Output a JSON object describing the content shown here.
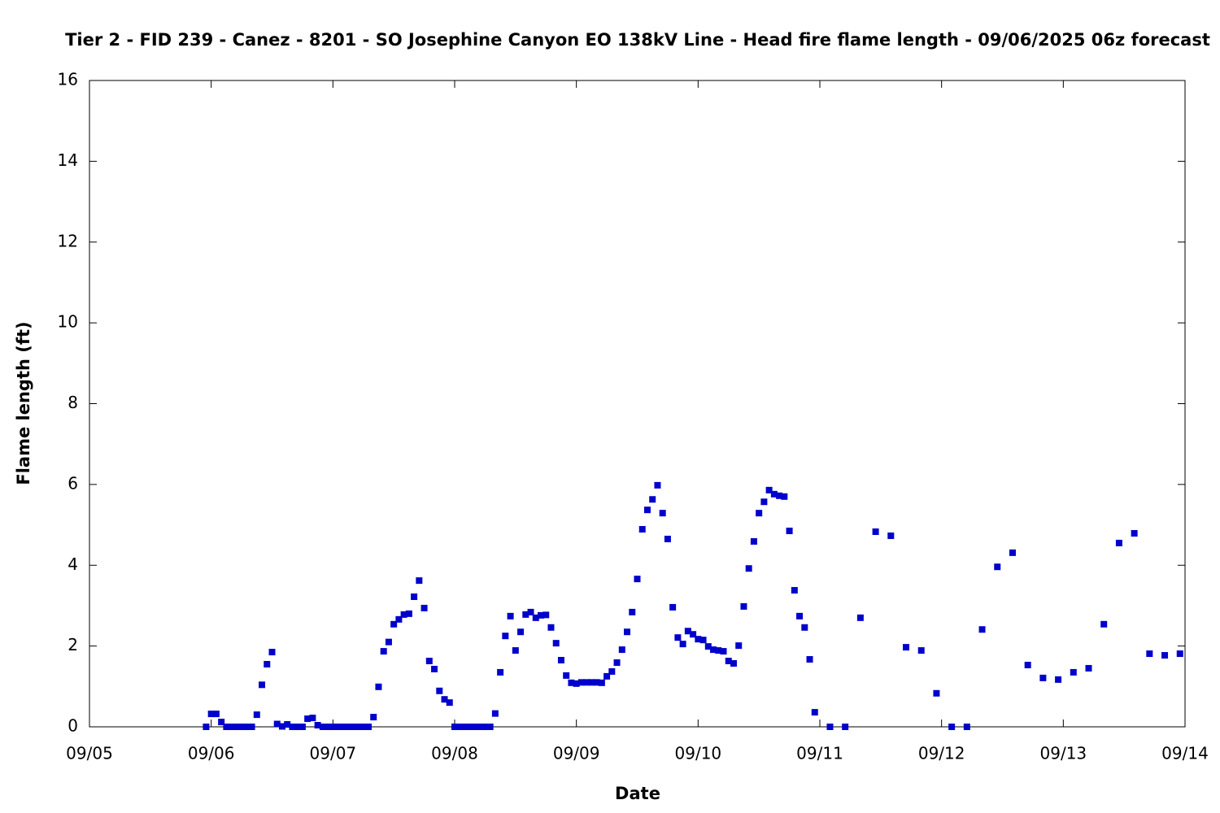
{
  "chart_data": {
    "type": "scatter",
    "title": "Tier 2 - FID 239 - Canez - 8201 - SO Josephine Canyon EO 138kV Line - Head fire flame length - 09/06/2025 06z forecast",
    "xlabel": "Date",
    "ylabel": "Flame length (ft)",
    "xlim": [
      0,
      216
    ],
    "ylim": [
      0,
      16
    ],
    "xticks": [
      {
        "value": 0,
        "label": "09/05"
      },
      {
        "value": 24,
        "label": "09/06"
      },
      {
        "value": 48,
        "label": "09/07"
      },
      {
        "value": 72,
        "label": "09/08"
      },
      {
        "value": 96,
        "label": "09/09"
      },
      {
        "value": 120,
        "label": "09/10"
      },
      {
        "value": 144,
        "label": "09/11"
      },
      {
        "value": 168,
        "label": "09/12"
      },
      {
        "value": 192,
        "label": "09/13"
      },
      {
        "value": 216,
        "label": "09/14"
      }
    ],
    "yticks": [
      0,
      2,
      4,
      6,
      8,
      10,
      12,
      14,
      16
    ],
    "grid": false,
    "series": [
      {
        "color": "#0000cc",
        "x": [
          23,
          24,
          25,
          26,
          27,
          28,
          29,
          30,
          31,
          32,
          33,
          34,
          35,
          36,
          37,
          38,
          39,
          40,
          41,
          42,
          43,
          44,
          45,
          46,
          47,
          48,
          49,
          50,
          51,
          52,
          53,
          54,
          55,
          56,
          57,
          58,
          59,
          60,
          61,
          62,
          63,
          64,
          65,
          66,
          67,
          68,
          69,
          70,
          71,
          72,
          73,
          74,
          75,
          76,
          77,
          78,
          79,
          80,
          81,
          82,
          83,
          84,
          85,
          86,
          87,
          88,
          89,
          90,
          91,
          92,
          93,
          94,
          95,
          96,
          97,
          98,
          99,
          100,
          101,
          102,
          103,
          104,
          105,
          106,
          107,
          108,
          109,
          110,
          111,
          112,
          113,
          114,
          115,
          116,
          117,
          118,
          119,
          120,
          121,
          122,
          123,
          124,
          125,
          126,
          127,
          128,
          129,
          130,
          131,
          132,
          133,
          134,
          135,
          136,
          137,
          138,
          139,
          140,
          141,
          142,
          143,
          146,
          149,
          152,
          155,
          158,
          161,
          164,
          167,
          170,
          173,
          176,
          179,
          182,
          185,
          188,
          191,
          194,
          197,
          200,
          203,
          206,
          209,
          212,
          215
        ],
        "values": [
          0,
          0.32,
          0.32,
          0.12,
          0,
          0,
          0,
          0,
          0,
          0,
          0.3,
          1.04,
          1.55,
          1.85,
          0.07,
          0.01,
          0.06,
          0,
          0,
          0,
          0.2,
          0.22,
          0.04,
          0,
          0,
          0,
          0,
          0,
          0,
          0,
          0,
          0,
          0,
          0.24,
          0.99,
          1.87,
          2.1,
          2.54,
          2.66,
          2.78,
          2.8,
          3.22,
          3.62,
          2.94,
          1.63,
          1.43,
          0.89,
          0.68,
          0.6,
          0,
          0,
          0,
          0,
          0,
          0,
          0,
          0,
          0.33,
          1.35,
          2.25,
          2.74,
          1.89,
          2.35,
          2.78,
          2.84,
          2.7,
          2.76,
          2.77,
          2.46,
          2.07,
          1.65,
          1.27,
          1.09,
          1.07,
          1.1,
          1.1,
          1.1,
          1.1,
          1.09,
          1.25,
          1.37,
          1.59,
          1.91,
          2.35,
          2.84,
          3.66,
          4.89,
          5.37,
          5.63,
          5.98,
          5.29,
          4.65,
          2.96,
          2.21,
          2.05,
          2.37,
          2.29,
          2.17,
          2.15,
          1.99,
          1.91,
          1.89,
          1.87,
          1.63,
          1.57,
          2.01,
          2.98,
          3.92,
          4.59,
          5.29,
          5.57,
          5.86,
          5.76,
          5.72,
          5.7,
          4.85,
          3.38,
          2.74,
          2.46,
          1.67,
          0.36,
          0,
          0,
          2.7,
          4.83,
          4.73,
          1.97,
          1.89,
          0.83,
          0,
          0,
          2.41,
          3.96,
          4.31,
          1.53,
          1.21,
          1.17,
          1.35,
          1.45,
          2.54,
          4.55,
          4.79,
          1.81,
          1.77,
          1.81
        ]
      }
    ]
  }
}
